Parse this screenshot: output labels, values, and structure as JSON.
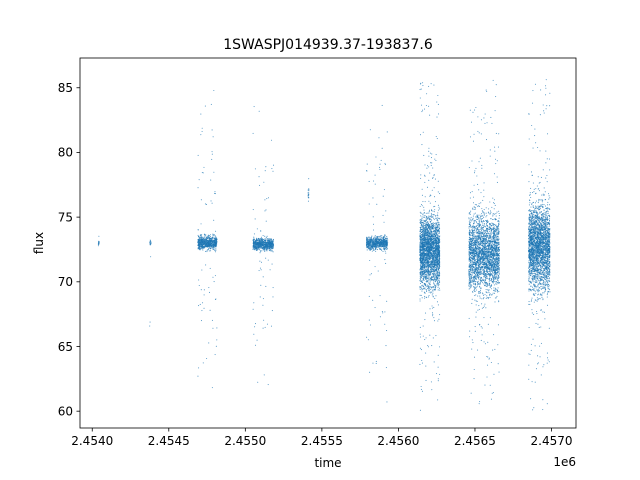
{
  "chart_data": {
    "type": "scatter",
    "title": "1SWASPJ014939.37-193837.6",
    "xlabel": "time",
    "ylabel": "flux",
    "x_offset_label": "1e6",
    "xlim": [
      2453920,
      2457160
    ],
    "ylim": [
      58.7,
      87.3
    ],
    "x_ticks": [
      2454000,
      2454500,
      2455000,
      2455500,
      2456000,
      2456500,
      2457000
    ],
    "x_tick_labels": [
      "2.4540",
      "2.4545",
      "2.4550",
      "2.4555",
      "2.4560",
      "2.4565",
      "2.4570"
    ],
    "y_ticks": [
      60,
      65,
      70,
      75,
      80,
      85
    ],
    "y_tick_labels": [
      "60",
      "65",
      "70",
      "75",
      "80",
      "85"
    ],
    "grid": false,
    "legend": "none",
    "marker_color": "#1f77b4",
    "series": [
      {
        "clusters": [
          {
            "x_range": [
              2454040,
              2454045
            ],
            "core": [
              72.5,
              73.5
            ],
            "spread": [
              72.5,
              74.6
            ],
            "density": "sparse"
          },
          {
            "x_range": [
              2454375,
              2454385
            ],
            "core": [
              73.0,
              73.0
            ],
            "spread": [
              60.0,
              85.8
            ],
            "density": "sparse"
          },
          {
            "x_range": [
              2454690,
              2454815
            ],
            "core": [
              72.0,
              74.0
            ],
            "spread": [
              60.5,
              85.8
            ],
            "density": "medium"
          },
          {
            "x_range": [
              2455050,
              2455185
            ],
            "core": [
              72.0,
              73.8
            ],
            "spread": [
              62.0,
              83.8
            ],
            "density": "medium"
          },
          {
            "x_range": [
              2455410,
              2455415
            ],
            "core": [
              76.0,
              77.5
            ],
            "spread": [
              76.0,
              78.5
            ],
            "density": "sparse"
          },
          {
            "x_range": [
              2455790,
              2455930
            ],
            "core": [
              72.0,
              74.0
            ],
            "spread": [
              60.5,
              84.5
            ],
            "density": "medium"
          },
          {
            "x_range": [
              2456140,
              2456270
            ],
            "core": [
              67.0,
              77.8
            ],
            "spread": [
              60.0,
              86.0
            ],
            "density": "dense"
          },
          {
            "x_range": [
              2456460,
              2456660
            ],
            "core": [
              66.5,
              78.0
            ],
            "spread": [
              60.0,
              85.8
            ],
            "density": "dense"
          },
          {
            "x_range": [
              2456850,
              2456990
            ],
            "core": [
              66.5,
              79.0
            ],
            "spread": [
              60.0,
              86.0
            ],
            "density": "dense"
          }
        ]
      }
    ]
  }
}
